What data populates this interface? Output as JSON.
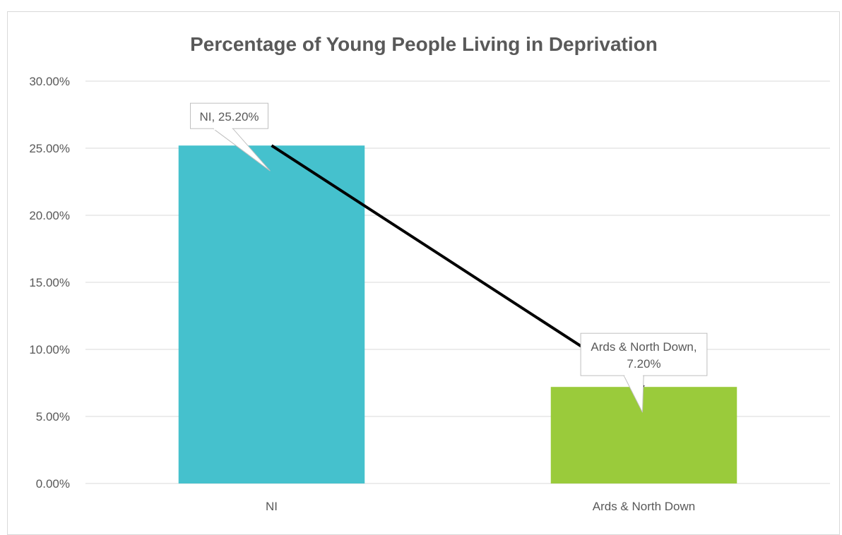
{
  "colors": {
    "bar_ni": "#45c1cd",
    "bar_ards": "#9acb3b",
    "grid": "#d9d9d9",
    "axis_text": "#595959",
    "title_text": "#595959",
    "trend_line": "#000000",
    "callout_border": "#bfbfbf"
  },
  "chart_data": {
    "type": "bar",
    "title": "Percentage of Young People Living in Deprivation",
    "xlabel": "",
    "ylabel": "",
    "categories": [
      "NI",
      "Ards & North Down"
    ],
    "values": [
      25.2,
      7.2
    ],
    "value_unit": "%",
    "ylim": [
      0,
      30
    ],
    "yticks": [
      "0.00%",
      "5.00%",
      "10.00%",
      "15.00%",
      "20.00%",
      "25.00%",
      "30.00%"
    ],
    "data_labels": [
      {
        "lines": [
          "NI, 25.20%"
        ]
      },
      {
        "lines": [
          "Ards & North Down,",
          "7.20%"
        ]
      }
    ],
    "trendline": true,
    "grid": true,
    "legend": "none"
  }
}
